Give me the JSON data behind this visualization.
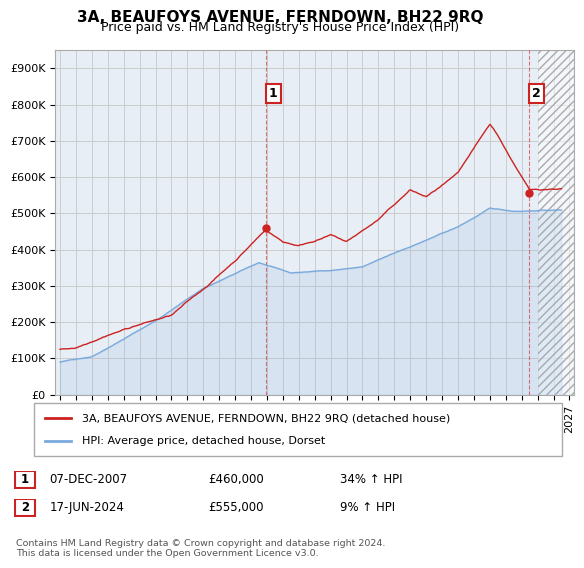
{
  "title": "3A, BEAUFOYS AVENUE, FERNDOWN, BH22 9RQ",
  "subtitle": "Price paid vs. HM Land Registry's House Price Index (HPI)",
  "ylabel_ticks": [
    "£0",
    "£100K",
    "£200K",
    "£300K",
    "£400K",
    "£500K",
    "£600K",
    "£700K",
    "£800K",
    "£900K"
  ],
  "ytick_values": [
    0,
    100000,
    200000,
    300000,
    400000,
    500000,
    600000,
    700000,
    800000,
    900000
  ],
  "ylim": [
    0,
    950000
  ],
  "xlim_start": 1994.7,
  "xlim_end": 2027.3,
  "grid_color": "#cccccc",
  "plot_bg_color": "#e8eef5",
  "background_color": "#ffffff",
  "red_line_color": "#cc2222",
  "blue_line_color": "#7aaadd",
  "hatch_start": 2025.0,
  "marker1_x": 2007.92,
  "marker1_y": 460000,
  "marker1_label": "1",
  "marker2_x": 2024.46,
  "marker2_y": 555000,
  "marker2_label": "2",
  "legend_label_red": "3A, BEAUFOYS AVENUE, FERNDOWN, BH22 9RQ (detached house)",
  "legend_label_blue": "HPI: Average price, detached house, Dorset",
  "annotation1_date": "07-DEC-2007",
  "annotation1_price": "£460,000",
  "annotation1_hpi": "34% ↑ HPI",
  "annotation2_date": "17-JUN-2024",
  "annotation2_price": "£555,000",
  "annotation2_hpi": "9% ↑ HPI",
  "footnote": "Contains HM Land Registry data © Crown copyright and database right 2024.\nThis data is licensed under the Open Government Licence v3.0.",
  "title_fontsize": 11,
  "subtitle_fontsize": 9,
  "tick_fontsize": 8
}
